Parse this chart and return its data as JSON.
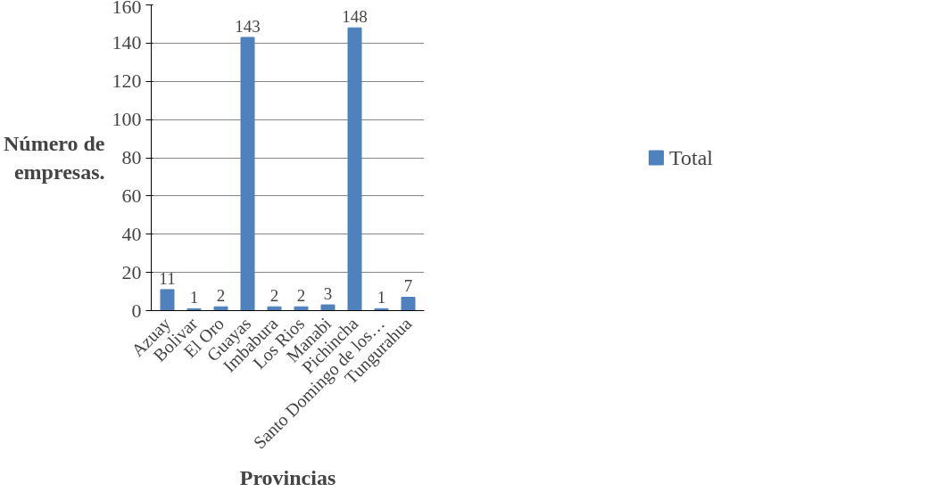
{
  "chart_data": {
    "type": "bar",
    "xlabel": "Provincias",
    "ylabel": "Número de empresas.",
    "categories": [
      "Azuay",
      "Bolivar",
      "El Oro",
      "Guayas",
      "Imbabura",
      "Los Rios",
      "Manabi",
      "Pichincha",
      "Santo Domingo de los…",
      "Tungurahua"
    ],
    "series": [
      {
        "name": "Total",
        "color": "#4f81bd",
        "values": [
          11,
          1,
          2,
          143,
          2,
          2,
          3,
          148,
          1,
          7
        ]
      }
    ],
    "ylim": [
      0,
      160
    ],
    "yticks": [
      0,
      20,
      40,
      60,
      80,
      100,
      120,
      140,
      160
    ],
    "grid": "y",
    "legend": "right",
    "data_labels": true
  }
}
